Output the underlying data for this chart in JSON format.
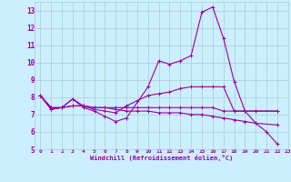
{
  "xlabel": "Windchill (Refroidissement éolien,°C)",
  "bg_color": "#cceeff",
  "grid_color": "#aacccc",
  "line_color": "#990099",
  "xlim": [
    -0.5,
    23
  ],
  "ylim": [
    5,
    13.5
  ],
  "xticks": [
    0,
    1,
    2,
    3,
    4,
    5,
    6,
    7,
    8,
    9,
    10,
    11,
    12,
    13,
    14,
    15,
    16,
    17,
    18,
    19,
    20,
    21,
    22,
    23
  ],
  "yticks": [
    5,
    6,
    7,
    8,
    9,
    10,
    11,
    12,
    13
  ],
  "series": [
    [
      8.1,
      7.3,
      7.4,
      7.9,
      7.4,
      7.2,
      6.9,
      6.6,
      6.8,
      8.6,
      10.1,
      9.9,
      10.1,
      10.4,
      12.9,
      13.2,
      11.4,
      8.9,
      7.2,
      6.5,
      6.0,
      5.3
    ],
    [
      8.1,
      7.3,
      7.4,
      7.9,
      7.5,
      7.3,
      7.2,
      7.1,
      7.5,
      7.8,
      8.1,
      8.2,
      8.3,
      8.5,
      8.6,
      8.6,
      8.6,
      8.6,
      7.2,
      7.2,
      7.2,
      7.2
    ],
    [
      8.1,
      7.4,
      7.4,
      7.5,
      7.5,
      7.4,
      7.4,
      7.4,
      7.4,
      7.4,
      7.4,
      7.4,
      7.4,
      7.4,
      7.4,
      7.4,
      7.4,
      7.2,
      7.2,
      7.2,
      7.2,
      7.2
    ],
    [
      8.1,
      7.4,
      7.4,
      7.5,
      7.5,
      7.4,
      7.4,
      7.3,
      7.2,
      7.2,
      7.2,
      7.1,
      7.1,
      7.1,
      7.0,
      7.0,
      6.9,
      6.8,
      6.7,
      6.6,
      6.5,
      6.4
    ]
  ],
  "series_x": [
    [
      0,
      1,
      2,
      3,
      4,
      5,
      6,
      7,
      8,
      10,
      11,
      12,
      13,
      14,
      15,
      16,
      17,
      18,
      19,
      20,
      21,
      22
    ],
    [
      0,
      1,
      2,
      3,
      4,
      5,
      6,
      7,
      8,
      9,
      10,
      11,
      12,
      13,
      14,
      15,
      16,
      17,
      18,
      19,
      20,
      22
    ],
    [
      0,
      1,
      2,
      3,
      4,
      5,
      6,
      7,
      8,
      9,
      10,
      11,
      12,
      13,
      14,
      15,
      16,
      17,
      18,
      19,
      20,
      22
    ],
    [
      0,
      1,
      2,
      3,
      4,
      5,
      6,
      7,
      8,
      9,
      10,
      11,
      12,
      13,
      14,
      15,
      16,
      17,
      18,
      19,
      20,
      22
    ]
  ]
}
